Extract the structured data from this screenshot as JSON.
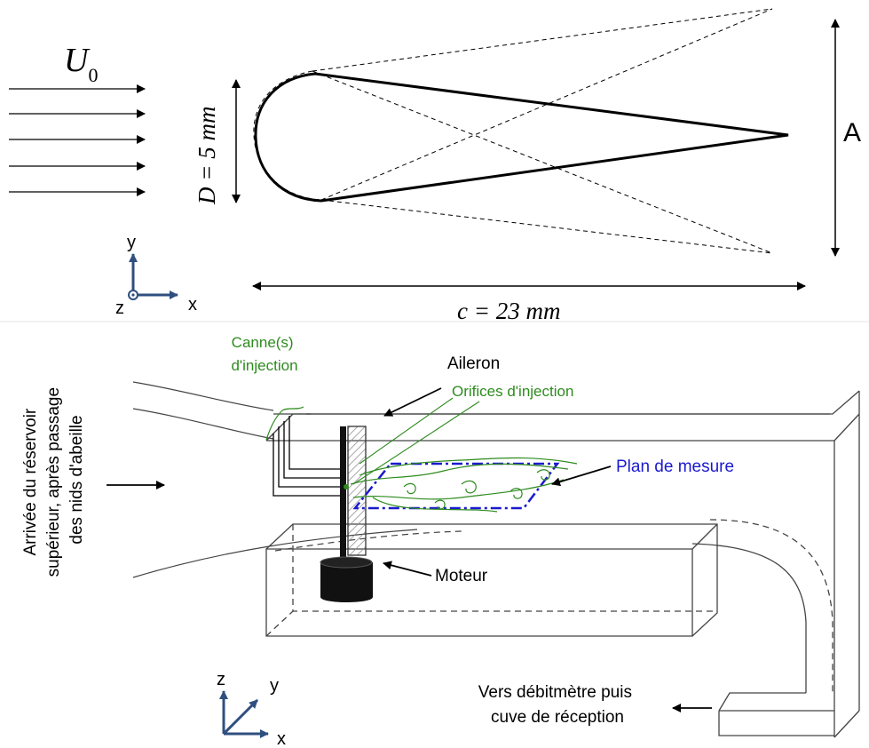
{
  "top_panel": {
    "freestream_label": "U",
    "freestream_subscript": "0",
    "diameter_label": "D = 5 mm",
    "chord_label": "c = 23 mm",
    "amplitude_label": "A",
    "axes": {
      "x": "x",
      "y": "y",
      "z": "z"
    }
  },
  "bottom_panel": {
    "inlet_label_lines": [
      "Arrivée du réservoir",
      "supérieur, après passage",
      "des nids d'abeille"
    ],
    "injection_rods_lines": [
      "Canne(s)",
      "d'injection"
    ],
    "aileron_label": "Aileron",
    "injection_holes_label": "Orifices d'injection",
    "measurement_plane_label": "Plan de mesure",
    "motor_label": "Moteur",
    "outlet_label_lines": [
      "Vers débitmètre puis",
      "cuve de réception"
    ],
    "axes": {
      "x": "x",
      "y": "y",
      "z": "z"
    }
  },
  "colors": {
    "annotation_green": "#2e8b1f",
    "measurement_blue": "#1a1acf",
    "axis_blue": "#2f4f7f",
    "line_black": "#000000"
  }
}
